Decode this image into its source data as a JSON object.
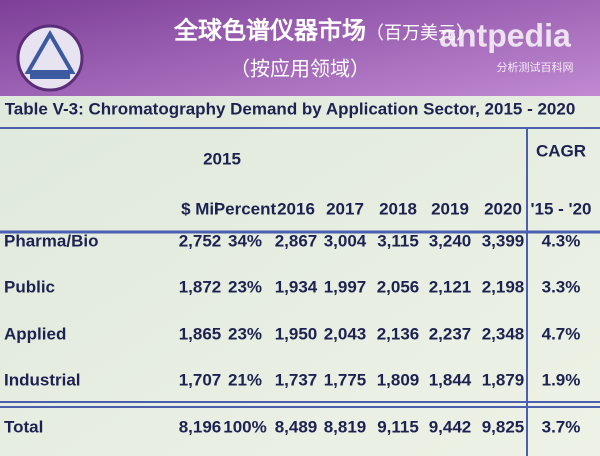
{
  "header": {
    "title": "全球色谱仪器市场",
    "unit": "（百万美元）",
    "subtitle": "（按应用领域）"
  },
  "watermark": {
    "name": "antpedia",
    "tagline": "分析测试百科网"
  },
  "table": {
    "title": "Table V-3: Chromatography Demand by Application Sector, 2015 - 2020",
    "header_top": [
      "2015",
      "CAGR"
    ],
    "columns": [
      "$ Mil",
      "Percent",
      "2016",
      "2017",
      "2018",
      "2019",
      "2020",
      "'15 - '20"
    ],
    "rows": [
      [
        "Pharma/Bio",
        "2,752",
        "34%",
        "2,867",
        "3,004",
        "3,115",
        "3,240",
        "3,399",
        "4.3%"
      ],
      [
        "Public",
        "1,872",
        "23%",
        "1,934",
        "1,997",
        "2,056",
        "2,121",
        "2,198",
        "3.3%"
      ],
      [
        "Applied",
        "1,865",
        "23%",
        "1,950",
        "2,043",
        "2,136",
        "2,237",
        "2,348",
        "4.7%"
      ],
      [
        "Industrial",
        "1,707",
        "21%",
        "1,737",
        "1,775",
        "1,809",
        "1,844",
        "1,879",
        "1.9%"
      ],
      [
        "Total",
        "8,196",
        "100%",
        "8,489",
        "8,819",
        "9,115",
        "9,442",
        "9,825",
        "3.7%"
      ]
    ]
  }
}
